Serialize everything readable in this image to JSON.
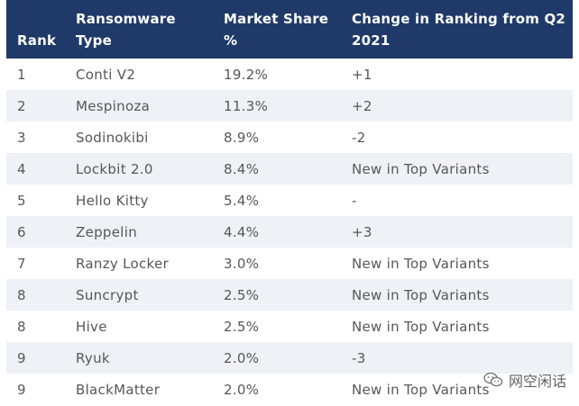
{
  "table": {
    "headers": {
      "rank": "Rank",
      "type": "Ransomware Type",
      "share": "Market Share %",
      "change": "Change in Ranking from Q2 2021"
    },
    "rows": [
      {
        "rank": "1",
        "type": "Conti V2",
        "share": "19.2%",
        "change": "+1"
      },
      {
        "rank": "2",
        "type": "Mespinoza",
        "share": "11.3%",
        "change": "+2"
      },
      {
        "rank": "3",
        "type": "Sodinokibi",
        "share": "8.9%",
        "change": "-2"
      },
      {
        "rank": "4",
        "type": "Lockbit 2.0",
        "share": "8.4%",
        "change": "New in Top Variants"
      },
      {
        "rank": "5",
        "type": "Hello Kitty",
        "share": "5.4%",
        "change": "-"
      },
      {
        "rank": "6",
        "type": "Zeppelin",
        "share": "4.4%",
        "change": "+3"
      },
      {
        "rank": "7",
        "type": "Ranzy Locker",
        "share": "3.0%",
        "change": "New in Top Variants"
      },
      {
        "rank": "8",
        "type": "Suncrypt",
        "share": "2.5%",
        "change": "New in Top Variants"
      },
      {
        "rank": "8",
        "type": "Hive",
        "share": "2.5%",
        "change": "New in Top Variants"
      },
      {
        "rank": "9",
        "type": "Ryuk",
        "share": "2.0%",
        "change": "-3"
      },
      {
        "rank": "9",
        "type": "BlackMatter",
        "share": "2.0%",
        "change": "New in Top Variants"
      }
    ]
  },
  "watermark": {
    "text": "网空闲话",
    "icon": "wechat-icon"
  },
  "colors": {
    "header_bg": "#1f3a68",
    "header_text": "#ffffff",
    "stripe": "#eef1f6",
    "body_text": "#575757"
  }
}
